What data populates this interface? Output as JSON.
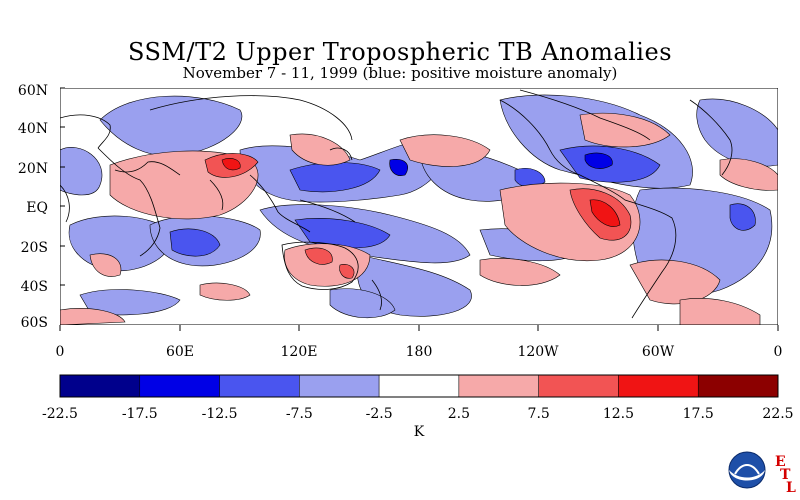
{
  "title": "SSM/T2 Upper Tropospheric TB Anomalies",
  "subtitle": "November 7 - 11, 1999 (blue: positive moisture anomaly)",
  "map": {
    "lat_labels": [
      "60N",
      "40N",
      "20N",
      "EQ",
      "20S",
      "40S",
      "60S"
    ],
    "lon_labels": [
      "0",
      "60E",
      "120E",
      "180",
      "120W",
      "60W",
      "0"
    ]
  },
  "colorbar": {
    "colors": [
      "#00008c",
      "#0000e6",
      "#4a55ef",
      "#9aa0ef",
      "#ffffff",
      "#f6a9a9",
      "#f25454",
      "#f01414",
      "#8c0000"
    ],
    "labels": [
      "-22.5",
      "-17.5",
      "-12.5",
      "-7.5",
      "-2.5",
      "2.5",
      "7.5",
      "12.5",
      "17.5",
      "22.5"
    ],
    "unit": "K"
  },
  "logo": {
    "org": "NOAA",
    "letters": [
      "E",
      "T",
      "L"
    ]
  },
  "colors": {
    "pos_moist_light": "#9aa0ef",
    "pos_moist_mid": "#4a55ef",
    "pos_moist_dark": "#0000e6",
    "dry_light": "#f6a9a9",
    "dry_mid": "#f25454",
    "dry_dark": "#f01414"
  }
}
